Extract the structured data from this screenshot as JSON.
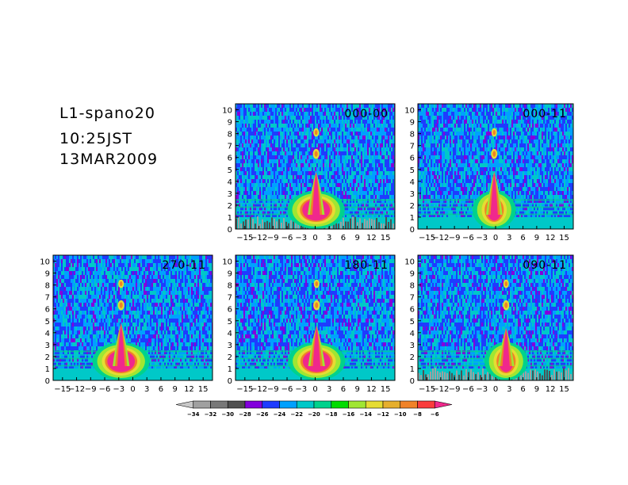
{
  "header": {
    "line1": "L1-spano20",
    "line2": "10:25JST",
    "line3": "13MAR2009"
  },
  "chart_data": [
    {
      "type": "heatmap",
      "title": "000-00",
      "xlim": [
        -17,
        17
      ],
      "ylim": [
        0,
        10.5
      ],
      "xticks": [
        -15,
        -12,
        -9,
        -6,
        -3,
        0,
        3,
        6,
        9,
        12,
        15
      ],
      "yticks": [
        0,
        1,
        2,
        3,
        4,
        5,
        6,
        7,
        8,
        9,
        10
      ],
      "features": {
        "lobe_offset": 0.2,
        "top": 4.8,
        "right_bulge": true,
        "gray_floor": true
      }
    },
    {
      "type": "heatmap",
      "title": "000-11",
      "xlim": [
        -17,
        17
      ],
      "ylim": [
        0,
        10.5
      ],
      "xticks": [
        -15,
        -12,
        -9,
        -6,
        -3,
        0,
        3,
        6,
        9,
        12,
        15
      ],
      "yticks": [
        0,
        1,
        2,
        3,
        4,
        5,
        6,
        7,
        8,
        9,
        10
      ],
      "features": {
        "lobe_offset": -0.3,
        "top": 4.8,
        "right_bulge": false,
        "gray_floor": false
      }
    },
    {
      "type": "heatmap",
      "title": "270-11",
      "xlim": [
        -17,
        17
      ],
      "ylim": [
        0,
        10.5
      ],
      "xticks": [
        -15,
        -12,
        -9,
        -6,
        -3,
        0,
        3,
        6,
        9,
        12,
        15
      ],
      "yticks": [
        0,
        1,
        2,
        3,
        4,
        5,
        6,
        7,
        8,
        9,
        10
      ],
      "features": {
        "lobe_offset": -2.5,
        "top": 4.8,
        "right_bulge": true,
        "gray_floor": false
      }
    },
    {
      "type": "heatmap",
      "title": "180-11",
      "xlim": [
        -17,
        17
      ],
      "ylim": [
        0,
        10.5
      ],
      "xticks": [
        -15,
        -12,
        -9,
        -6,
        -3,
        0,
        3,
        6,
        9,
        12,
        15
      ],
      "yticks": [
        0,
        1,
        2,
        3,
        4,
        5,
        6,
        7,
        8,
        9,
        10
      ],
      "features": {
        "lobe_offset": 0.3,
        "top": 4.6,
        "right_bulge": true,
        "gray_floor": false
      }
    },
    {
      "type": "heatmap",
      "title": "090-11",
      "xlim": [
        -17,
        17
      ],
      "ylim": [
        0,
        10.5
      ],
      "xticks": [
        -15,
        -12,
        -9,
        -6,
        -3,
        0,
        3,
        6,
        9,
        12,
        15
      ],
      "yticks": [
        0,
        1,
        2,
        3,
        4,
        5,
        6,
        7,
        8,
        9,
        10
      ],
      "features": {
        "lobe_offset": 2.3,
        "top": 4.4,
        "right_bulge": false,
        "gray_floor": true
      }
    }
  ],
  "colorbar": {
    "levels": [
      -34,
      -32,
      -30,
      -28,
      -26,
      -24,
      -22,
      -20,
      -18,
      -16,
      -14,
      -12,
      -10,
      -8,
      -6
    ],
    "labels": [
      "-34",
      "-32",
      "-30",
      "-28",
      "-26",
      "-24",
      "-22",
      "-20",
      "-18",
      "-16",
      "-14",
      "-12",
      "-10",
      "-8",
      "-6"
    ],
    "colors": [
      "#c8c8c8",
      "#a0a0a0",
      "#787878",
      "#505050",
      "#8200dc",
      "#1e3cff",
      "#00a0ff",
      "#00c8c8",
      "#00d28c",
      "#00dc00",
      "#a0e632",
      "#e6dc32",
      "#e6af2d",
      "#f08228",
      "#fa3c3c",
      "#f0288c"
    ]
  }
}
